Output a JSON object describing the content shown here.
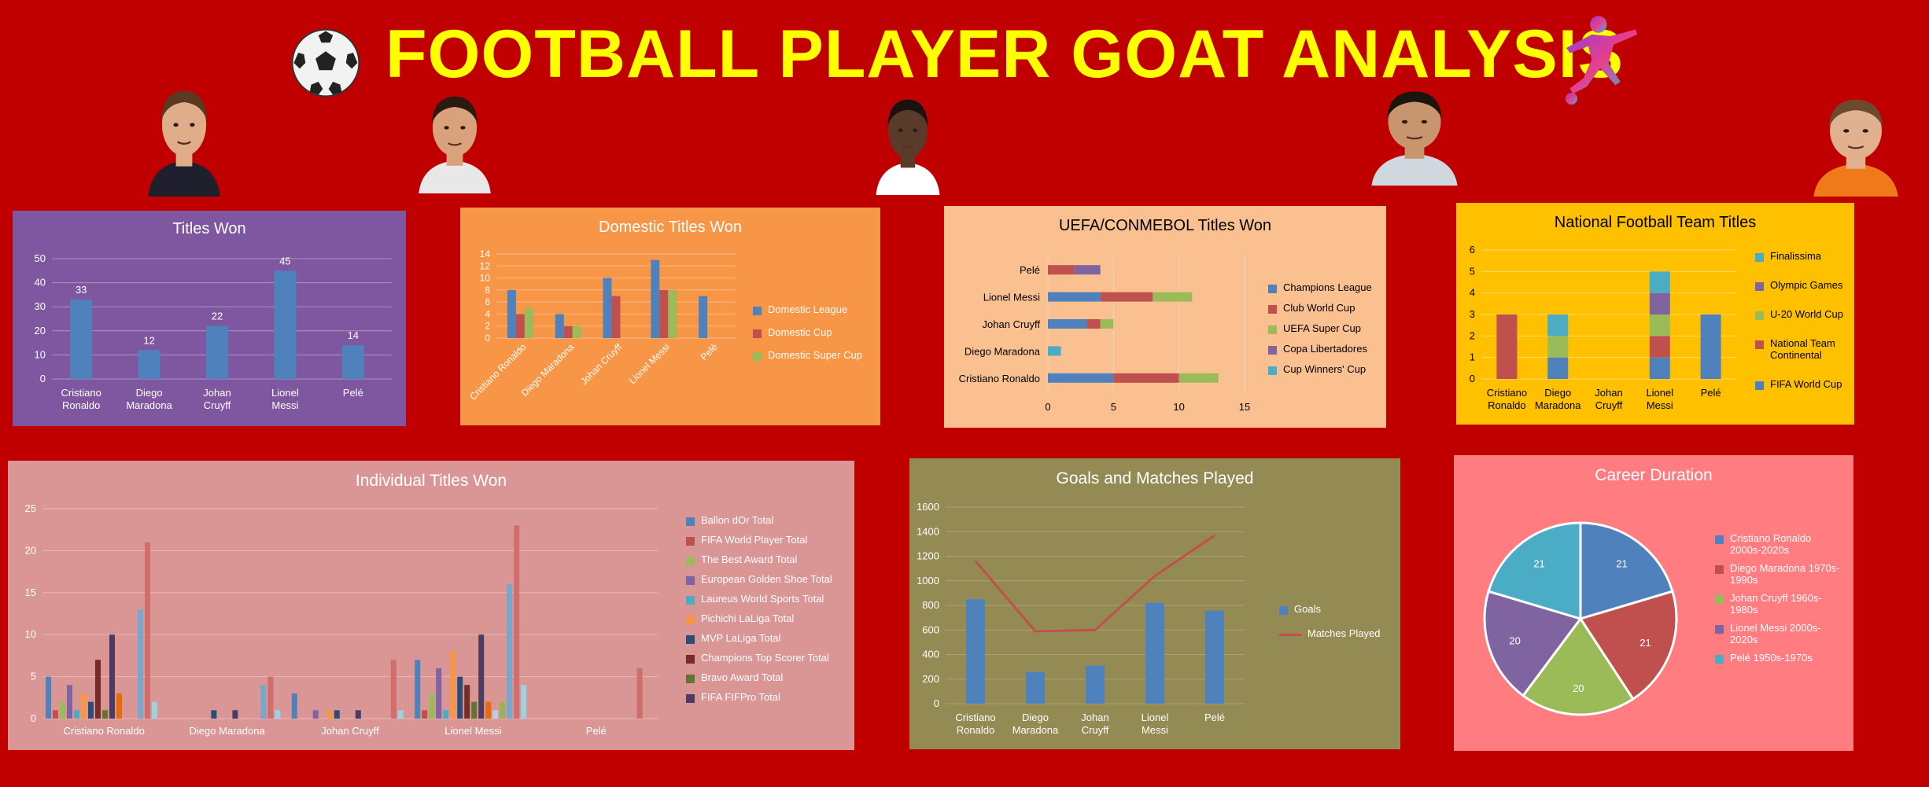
{
  "page": {
    "title": "FOOTBALL PLAYER GOAT ANALYSIS",
    "portraits": [
      {
        "name": "Lionel Messi",
        "skin": "#e0ad8a",
        "hair": "#5a3a22",
        "shirt": "#1f1f2e"
      },
      {
        "name": "Cristiano Ronaldo",
        "skin": "#d9a27d",
        "hair": "#2b1a12",
        "shirt": "#e8e8e8"
      },
      {
        "name": "Pelé",
        "skin": "#5a3b2a",
        "hair": "#1a1210",
        "shirt": "#ffffff"
      },
      {
        "name": "Diego Maradona",
        "skin": "#c8966e",
        "hair": "#1c140f",
        "shirt": "#cfd8df"
      },
      {
        "name": "Johan Cruyff",
        "skin": "#e0b08f",
        "hair": "#6b4a2d",
        "shirt": "#f07a1a"
      }
    ]
  },
  "colors": {
    "background": "#c00000",
    "title": "#ffff00",
    "blue": "#4f81bd",
    "red": "#c0504d",
    "green": "#9bbb59",
    "purple": "#8064a2",
    "teal": "#4bacc6",
    "orange": "#f79646",
    "darkblue": "#2c4d75",
    "darkred": "#772c2a",
    "darkgreen": "#5f7530",
    "darkpurple": "#4d3b62"
  },
  "chart_data": [
    {
      "id": "titles",
      "type": "bar",
      "title": "Titles Won",
      "categories": [
        "Cristiano Ronaldo",
        "Diego Maradona",
        "Johan Cruyff",
        "Lionel Messi",
        "Pelé"
      ],
      "series": [
        {
          "values": [
            33,
            12,
            22,
            45,
            14
          ]
        }
      ],
      "ylim": [
        0,
        50
      ],
      "yticks": [
        0,
        10,
        20,
        30,
        40,
        50
      ],
      "data_labels": true,
      "grid": true
    },
    {
      "id": "domestic",
      "type": "bar",
      "title": "Domestic Titles Won",
      "categories": [
        "Cristiano Ronaldo",
        "Diego Maradona",
        "Johan Cruyff",
        "Lionel Messi",
        "Pelé"
      ],
      "series": [
        {
          "name": "Domestic League",
          "values": [
            8,
            4,
            10,
            13,
            7
          ]
        },
        {
          "name": "Domestic Cup",
          "values": [
            4,
            2,
            7,
            8,
            0
          ]
        },
        {
          "name": "Domestic Super Cup",
          "values": [
            5,
            2,
            0,
            8,
            0
          ]
        }
      ],
      "ylim": [
        0,
        14
      ],
      "yticks": [
        0,
        2,
        4,
        6,
        8,
        10,
        12,
        14
      ],
      "grid": true,
      "legend": "right"
    },
    {
      "id": "uefa",
      "type": "bar",
      "orientation": "horizontal",
      "stacked": true,
      "title": "UEFA/CONMEBOL Titles Won",
      "categories": [
        "Cristiano Ronaldo",
        "Diego Maradona",
        "Johan Cruyff",
        "Lionel Messi",
        "Pelé"
      ],
      "series": [
        {
          "name": "Champions League",
          "values": [
            5,
            0,
            3,
            4,
            0
          ]
        },
        {
          "name": "Club World Cup",
          "values": [
            5,
            0,
            1,
            4,
            2
          ]
        },
        {
          "name": "UEFA Super Cup",
          "values": [
            3,
            0,
            1,
            3,
            0
          ]
        },
        {
          "name": "Copa Libertadores",
          "values": [
            0,
            0,
            0,
            0,
            2
          ]
        },
        {
          "name": "Cup Winners' Cup",
          "values": [
            0,
            1,
            0,
            0,
            0
          ]
        }
      ],
      "xlim": [
        0,
        15
      ],
      "xticks": [
        0,
        5,
        10,
        15
      ],
      "grid": true,
      "legend": "right"
    },
    {
      "id": "national",
      "type": "bar",
      "stacked": true,
      "title": "National Football Team Titles",
      "categories": [
        "Cristiano Ronaldo",
        "Diego Maradona",
        "Johan Cruyff",
        "Lionel Messi",
        "Pelé"
      ],
      "series": [
        {
          "name": "FIFA World Cup",
          "values": [
            0,
            1,
            0,
            1,
            3
          ]
        },
        {
          "name": "National Team Continental",
          "values": [
            3,
            0,
            0,
            1,
            0
          ]
        },
        {
          "name": "U-20 World Cup",
          "values": [
            0,
            1,
            0,
            1,
            0
          ]
        },
        {
          "name": "Olympic Games",
          "values": [
            0,
            0,
            0,
            1,
            0
          ]
        },
        {
          "name": "Finalissima",
          "values": [
            0,
            1,
            0,
            1,
            0
          ]
        }
      ],
      "ylim": [
        0,
        6
      ],
      "yticks": [
        0,
        1,
        2,
        3,
        4,
        5,
        6
      ],
      "grid": true,
      "legend": "right"
    },
    {
      "id": "individual",
      "type": "bar",
      "title": "Individual Titles Won",
      "categories": [
        "Cristiano Ronaldo",
        "Diego Maradona",
        "Johan Cruyff",
        "Lionel Messi",
        "Pelé"
      ],
      "series": [
        {
          "name": "Ballon dOr Total",
          "values": [
            5,
            0,
            3,
            7,
            0
          ]
        },
        {
          "name": "FIFA World Player Total",
          "values": [
            1,
            0,
            0,
            1,
            0
          ]
        },
        {
          "name": "The Best Award Total",
          "values": [
            2,
            0,
            0,
            3,
            0
          ]
        },
        {
          "name": "European Golden Shoe Total",
          "values": [
            4,
            0,
            1,
            6,
            0
          ]
        },
        {
          "name": "Laureus World Sports Total",
          "values": [
            1,
            0,
            0,
            1,
            0
          ]
        },
        {
          "name": "Pichichi LaLiga Total",
          "values": [
            3,
            0,
            1,
            8,
            0
          ]
        },
        {
          "name": "MVP LaLiga Total",
          "values": [
            2,
            1,
            1,
            5,
            0
          ]
        },
        {
          "name": "Champions Top Scorer Total",
          "values": [
            7,
            0,
            0,
            4,
            0
          ]
        },
        {
          "name": "Bravo Award Total",
          "values": [
            1,
            0,
            0,
            2,
            0
          ]
        },
        {
          "name": "FIFA FIFPro Total",
          "values": [
            10,
            1,
            1,
            10,
            0
          ]
        },
        {
          "name": "_s11",
          "values": [
            3,
            0,
            0,
            2,
            0
          ]
        },
        {
          "name": "_s12",
          "values": [
            0,
            0,
            0,
            1,
            0
          ]
        },
        {
          "name": "_s13",
          "values": [
            0,
            0,
            0,
            2,
            0
          ]
        },
        {
          "name": "_s14",
          "values": [
            13,
            4,
            0,
            16,
            0
          ]
        },
        {
          "name": "_s15",
          "values": [
            21,
            5,
            7,
            23,
            6
          ]
        },
        {
          "name": "_s16",
          "values": [
            2,
            1,
            1,
            4,
            0
          ]
        }
      ],
      "ylim": [
        0,
        25
      ],
      "yticks": [
        0,
        5,
        10,
        15,
        20,
        25
      ],
      "grid": true,
      "legend": "right"
    },
    {
      "id": "goals",
      "type": "bar",
      "title": "Goals and Matches Played",
      "categories": [
        "Cristiano Ronaldo",
        "Diego Maradona",
        "Johan Cruyff",
        "Lionel Messi",
        "Pelé"
      ],
      "series": [
        {
          "name": "Goals",
          "type": "bar",
          "values": [
            850,
            259,
            310,
            821,
            757
          ]
        },
        {
          "name": "Matches Played",
          "type": "line",
          "values": [
            1160,
            590,
            600,
            1040,
            1370
          ]
        }
      ],
      "ylim": [
        0,
        1600
      ],
      "yticks": [
        0,
        200,
        400,
        600,
        800,
        1000,
        1200,
        1400,
        1600
      ],
      "grid": true,
      "legend": "right"
    },
    {
      "id": "career",
      "type": "pie",
      "title": "Career Duration",
      "labels": [
        "Cristiano Ronaldo 2000s-2020s",
        "Diego Maradona 1970s-1990s",
        "Johan Cruyff 1960s-1980s",
        "Lionel Messi 2000s-2020s",
        "Pelé 1950s-1970s"
      ],
      "values": [
        21,
        21,
        20,
        20,
        21
      ],
      "data_labels": true,
      "legend": "right"
    }
  ]
}
